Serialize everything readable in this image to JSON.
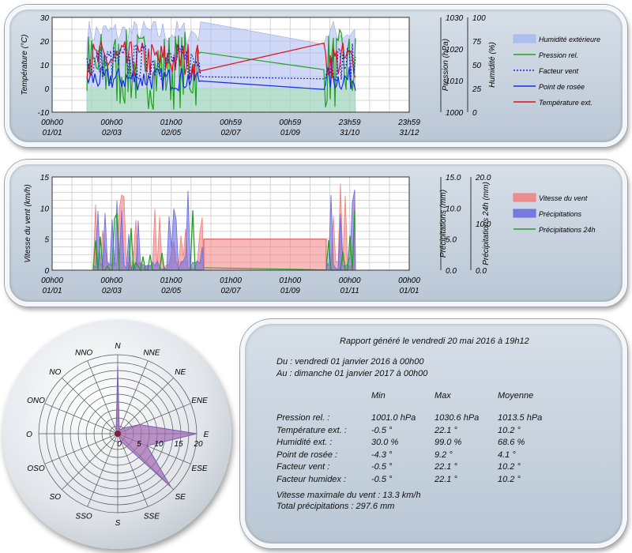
{
  "colors": {
    "humidity_fill": "#a8b8f0",
    "pressure_line": "#22a022",
    "windchill_line": "#2222cc",
    "dewpoint_line": "#1030e0",
    "temp_line": "#dd1020",
    "wind_fill": "#f08080",
    "precip_fill": "#6a6ae0",
    "precip24_line": "#22a022",
    "wind_rose_fill": "#d05a86",
    "wind_rose_fill2": "#7878d8"
  },
  "chart1": {
    "type": "line",
    "y_left_label": "Température (°C)",
    "y_mid_label": "Pression (hPa)",
    "y_right_label": "Humidité (%)",
    "y_left_ticks": [
      "30",
      "20",
      "10",
      "0",
      "-10"
    ],
    "y_mid_ticks": [
      "1030",
      "1020",
      "1010",
      "1000"
    ],
    "y_right_ticks": [
      "100",
      "75",
      "50",
      "25",
      "0"
    ],
    "x_ticks": [
      {
        "time": "00h00",
        "date": "01/01"
      },
      {
        "time": "00h00",
        "date": "02/03"
      },
      {
        "time": "01h00",
        "date": "02/05"
      },
      {
        "time": "00h59",
        "date": "02/07"
      },
      {
        "time": "00h59",
        "date": "01/09"
      },
      {
        "time": "23h59",
        "date": "31/10"
      },
      {
        "time": "23h59",
        "date": "31/12"
      }
    ],
    "legend": [
      {
        "label": "Humidité extérieure",
        "kind": "area",
        "color": "#a8b8f0"
      },
      {
        "label": "Pression rel.",
        "kind": "line",
        "color": "#22a022"
      },
      {
        "label": "Facteur vent",
        "kind": "dotted",
        "color": "#2222cc"
      },
      {
        "label": "Point de rosée",
        "kind": "line",
        "color": "#1030e0"
      },
      {
        "label": "Température ext.",
        "kind": "line",
        "color": "#dd1020"
      }
    ]
  },
  "chart2": {
    "type": "area",
    "y_left_label": "Vitesse du vent (km/h)",
    "y_mid_label": "Précipitations (mm)",
    "y_right_label": "Précipitations 24h (mm)",
    "y_left_ticks": [
      "15",
      "10",
      "5",
      "0"
    ],
    "y_mid_ticks": [
      "15.0",
      "10.0",
      "5.0",
      "0.0"
    ],
    "y_right_ticks": [
      "20.0",
      "10.0",
      "0.0"
    ],
    "x_ticks": [
      {
        "time": "00h00",
        "date": "01/01"
      },
      {
        "time": "00h00",
        "date": "02/03"
      },
      {
        "time": "01h00",
        "date": "02/05"
      },
      {
        "time": "01h00",
        "date": "02/07"
      },
      {
        "time": "01h00",
        "date": "01/09"
      },
      {
        "time": "00h00",
        "date": "01/11"
      },
      {
        "time": "00h00",
        "date": "01/01"
      }
    ],
    "legend": [
      {
        "label": "Vitesse du vent",
        "kind": "area",
        "color": "#f08080"
      },
      {
        "label": "Précipitations",
        "kind": "area",
        "color": "#6a6ae0"
      },
      {
        "label": "Précipitations 24h",
        "kind": "line",
        "color": "#22a022"
      }
    ]
  },
  "wind_rose": {
    "type": "radar",
    "directions": [
      "N",
      "NNE",
      "NE",
      "ENE",
      "E",
      "ESE",
      "SE",
      "SSE",
      "S",
      "SSO",
      "SO",
      "OSO",
      "O",
      "ONO",
      "NO",
      "NNO"
    ],
    "radial_ticks": [
      "0",
      "5",
      "10",
      "15",
      "20"
    ],
    "values": [
      17,
      1,
      2,
      6,
      21,
      8,
      19,
      2,
      0,
      0,
      0,
      0,
      0,
      0,
      0,
      1
    ]
  },
  "report": {
    "title": "Rapport généré le vendredi 20 mai 2016 à 19h12",
    "from": "Du : vendredi 01 janvier 2016 à 00h00",
    "to": "Au : dimanche 01 janvier 2017 à 00h00",
    "columns": [
      "Min",
      "Max",
      "Moyenne"
    ],
    "rows": [
      {
        "label": "Pression rel. :",
        "min": "1001.0 hPa",
        "max": "1030.6 hPa",
        "avg": "1013.5 hPa"
      },
      {
        "label": "Température ext. :",
        "min": "-0.5 °",
        "max": "22.1 °",
        "avg": "10.2 °"
      },
      {
        "label": "Humidité ext. :",
        "min": "30.0 %",
        "max": "99.0 %",
        "avg": "68.6 %"
      },
      {
        "label": "Point de rosée :",
        "min": "-4.3 °",
        "max": "9.2 °",
        "avg": "4.1 °"
      },
      {
        "label": "Facteur vent :",
        "min": "-0.5 °",
        "max": "22.1 °",
        "avg": "10.2 °"
      },
      {
        "label": "Facteur humidex :",
        "min": "-0.5 °",
        "max": "22.1 °",
        "avg": "10.2 °"
      }
    ],
    "max_wind": "Vitesse maximale du vent : 13.3 km/h",
    "total_precip": "Total précipitations : 297.6 mm"
  }
}
